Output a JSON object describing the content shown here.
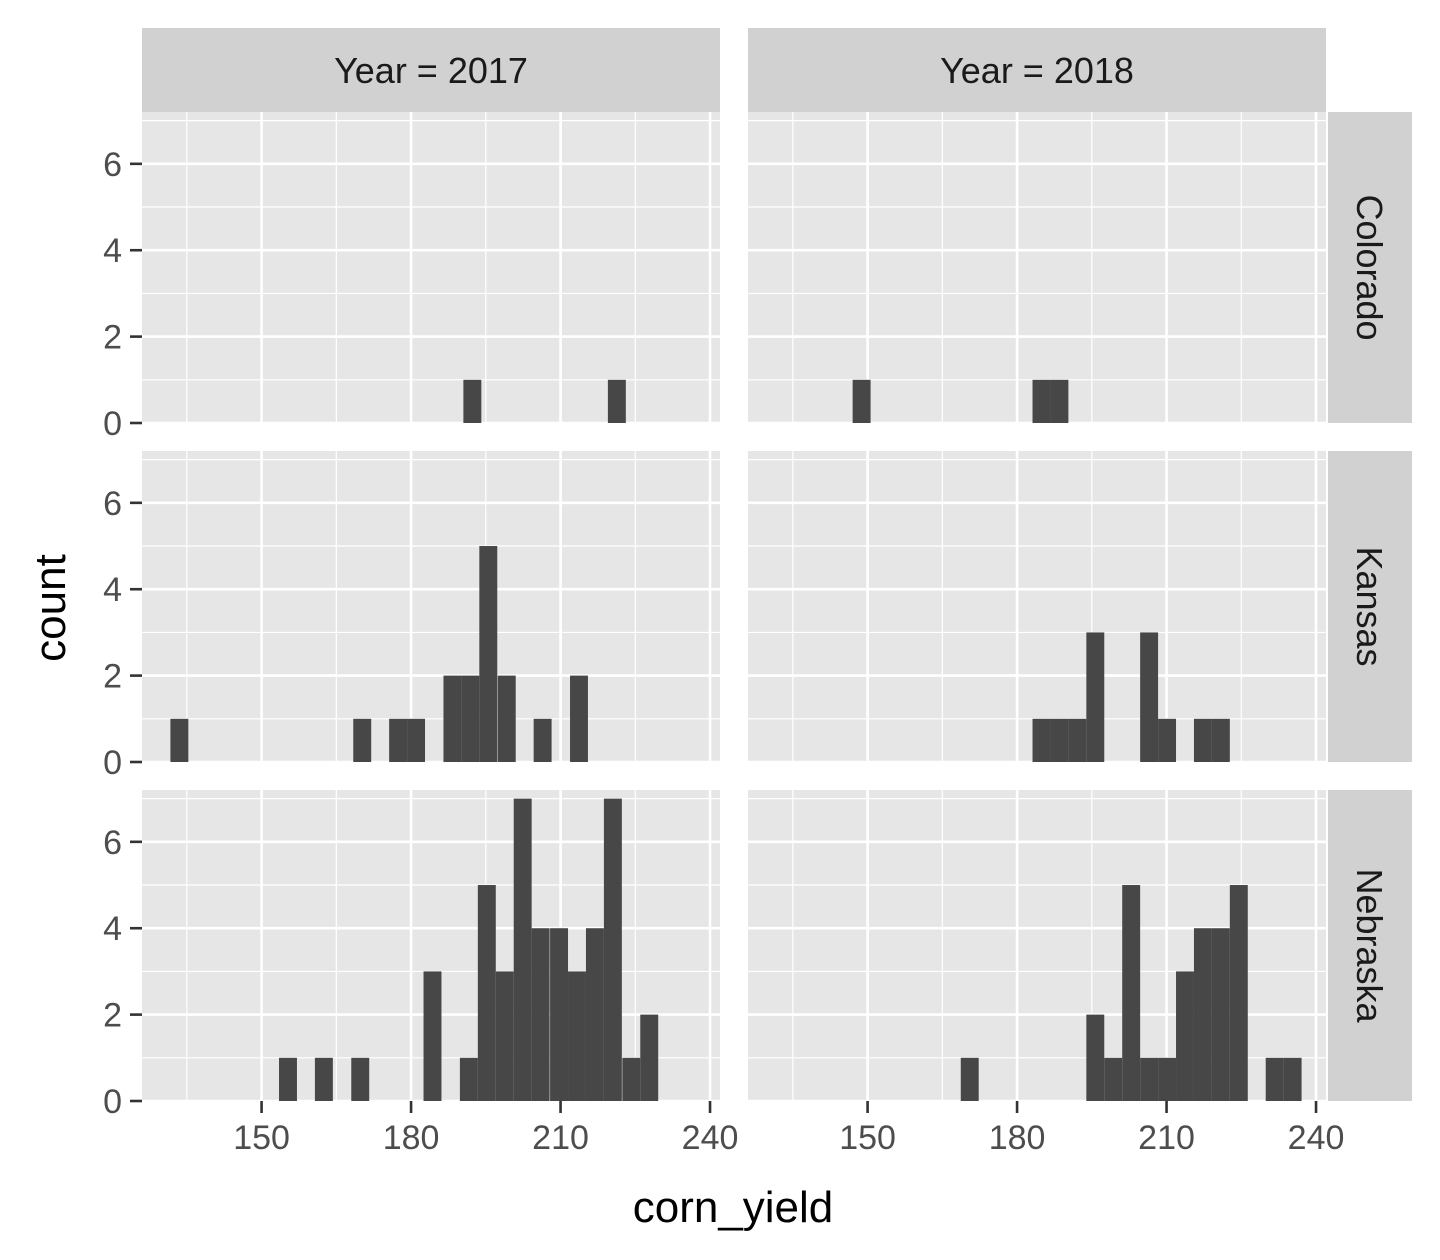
{
  "chart_data": {
    "type": "bar",
    "subtype": "faceted-histogram",
    "xlabel": "corn_yield",
    "ylabel": "count",
    "xlim": [
      126,
      242
    ],
    "ylim": [
      0,
      7.2
    ],
    "x_ticks": [
      150,
      180,
      210,
      240
    ],
    "y_ticks": [
      0,
      2,
      4,
      6
    ],
    "bin_width": 3.6,
    "grid": true,
    "colors": {
      "bar": "#474747",
      "panel_background": "#e6e6e6",
      "strip_background": "#d1d1d1",
      "grid": "#ffffff",
      "tick_label": "#4d4d4d"
    },
    "columns": [
      {
        "label": "Year =  2017",
        "year": 2017
      },
      {
        "label": "Year =  2018",
        "year": 2018
      }
    ],
    "rows": [
      {
        "label": "Colorado"
      },
      {
        "label": "Kansas"
      },
      {
        "label": "Nebraska"
      }
    ],
    "panels": [
      {
        "row": 0,
        "col": 0,
        "state": "Colorado",
        "year": 2017,
        "bins": [
          {
            "x": 192.3,
            "count": 1
          },
          {
            "x": 221.3,
            "count": 1
          }
        ]
      },
      {
        "row": 0,
        "col": 1,
        "state": "Colorado",
        "year": 2018,
        "bins": [
          {
            "x": 148.8,
            "count": 1
          },
          {
            "x": 184.9,
            "count": 1
          },
          {
            "x": 188.5,
            "count": 1
          }
        ]
      },
      {
        "row": 1,
        "col": 0,
        "state": "Kansas",
        "year": 2017,
        "bins": [
          {
            "x": 133.5,
            "count": 1
          },
          {
            "x": 170.2,
            "count": 1
          },
          {
            "x": 177.4,
            "count": 1
          },
          {
            "x": 181.0,
            "count": 1
          },
          {
            "x": 188.3,
            "count": 2
          },
          {
            "x": 191.9,
            "count": 2
          },
          {
            "x": 195.5,
            "count": 5
          },
          {
            "x": 199.2,
            "count": 2
          },
          {
            "x": 206.4,
            "count": 1
          },
          {
            "x": 213.7,
            "count": 2
          }
        ]
      },
      {
        "row": 1,
        "col": 1,
        "state": "Kansas",
        "year": 2018,
        "bins": [
          {
            "x": 184.9,
            "count": 1
          },
          {
            "x": 188.5,
            "count": 1
          },
          {
            "x": 192.1,
            "count": 1
          },
          {
            "x": 195.7,
            "count": 3
          },
          {
            "x": 206.5,
            "count": 3
          },
          {
            "x": 210.1,
            "count": 1
          },
          {
            "x": 217.3,
            "count": 1
          },
          {
            "x": 220.9,
            "count": 1
          }
        ]
      },
      {
        "row": 2,
        "col": 0,
        "state": "Nebraska",
        "year": 2017,
        "bins": [
          {
            "x": 155.3,
            "count": 1
          },
          {
            "x": 162.5,
            "count": 1
          },
          {
            "x": 169.8,
            "count": 1
          },
          {
            "x": 184.3,
            "count": 3
          },
          {
            "x": 191.6,
            "count": 1
          },
          {
            "x": 195.2,
            "count": 5
          },
          {
            "x": 198.8,
            "count": 3
          },
          {
            "x": 202.4,
            "count": 7
          },
          {
            "x": 206.0,
            "count": 4
          },
          {
            "x": 209.7,
            "count": 4
          },
          {
            "x": 213.3,
            "count": 3
          },
          {
            "x": 216.9,
            "count": 4
          },
          {
            "x": 220.5,
            "count": 7
          },
          {
            "x": 224.2,
            "count": 1
          },
          {
            "x": 227.8,
            "count": 2
          }
        ]
      },
      {
        "row": 2,
        "col": 1,
        "state": "Nebraska",
        "year": 2018,
        "bins": [
          {
            "x": 170.5,
            "count": 1
          },
          {
            "x": 195.7,
            "count": 2
          },
          {
            "x": 199.3,
            "count": 1
          },
          {
            "x": 202.9,
            "count": 5
          },
          {
            "x": 206.5,
            "count": 1
          },
          {
            "x": 210.1,
            "count": 1
          },
          {
            "x": 213.7,
            "count": 3
          },
          {
            "x": 217.3,
            "count": 4
          },
          {
            "x": 220.9,
            "count": 4
          },
          {
            "x": 224.5,
            "count": 5
          },
          {
            "x": 231.7,
            "count": 1
          },
          {
            "x": 235.3,
            "count": 1
          }
        ]
      }
    ]
  }
}
